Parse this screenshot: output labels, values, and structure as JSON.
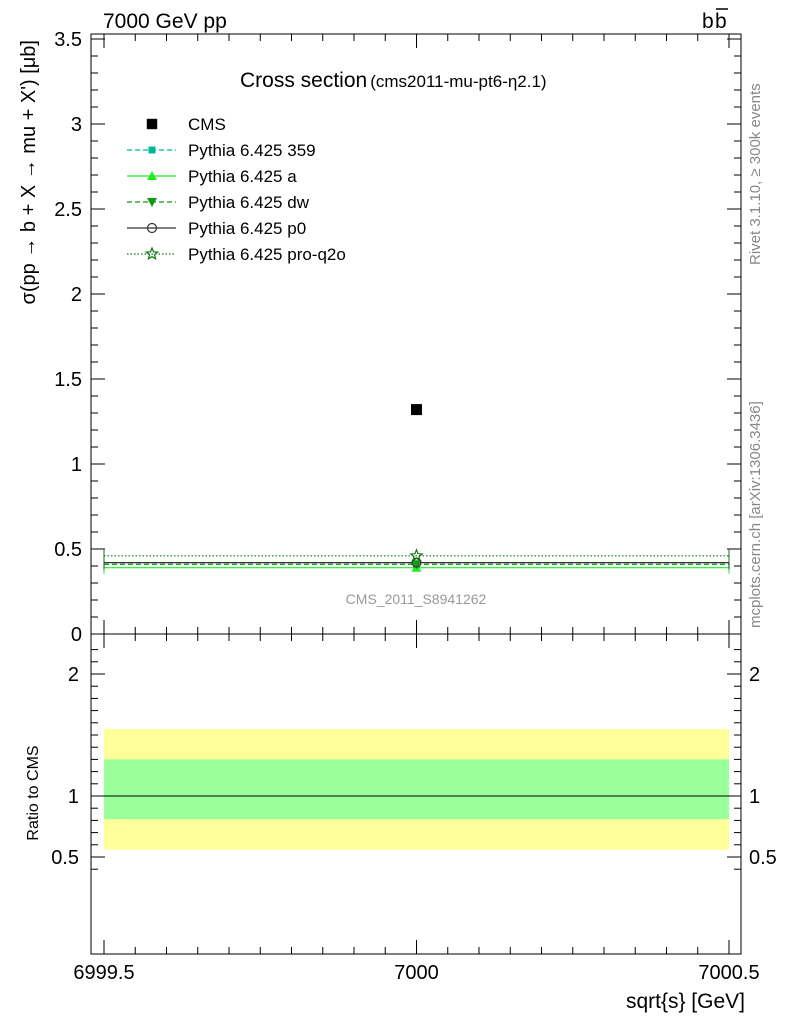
{
  "header": {
    "left": "7000 GeV pp",
    "right": "b",
    "right_bar": "b"
  },
  "side_labels": {
    "rivet": "Rivet 3.1.10, ≥ 300k events",
    "mcplots": "mcplots.cern.ch [arXiv:1306.3436]"
  },
  "chart_data": [
    {
      "type": "scatter",
      "title": "Cross section",
      "subtitle": "(cms2011-mu-pt6-η2.1)",
      "ylabel": "σ(pp → b + X → mu + X') [μb]",
      "xlim": [
        6999.5,
        7000.5
      ],
      "ylim": [
        0,
        3.5
      ],
      "yticks": [
        0,
        0.5,
        1,
        1.5,
        2,
        2.5,
        3,
        3.5
      ],
      "ytick_labels": [
        "0",
        "0.5",
        "1",
        "1.5",
        "2",
        "2.5",
        "3",
        "3.5"
      ],
      "watermark": "CMS_2011_S8941262",
      "legend_position": "top-left",
      "series": [
        {
          "name": "CMS",
          "x": [
            7000
          ],
          "y": [
            1.32
          ],
          "color": "#000000",
          "marker": "square",
          "line": "none"
        },
        {
          "name": "Pythia 6.425 359",
          "x": [
            7000
          ],
          "y": [
            0.41
          ],
          "color": "#00b894",
          "marker": "small-square",
          "line": "dashed"
        },
        {
          "name": "Pythia 6.425 a",
          "x": [
            7000
          ],
          "y": [
            0.39
          ],
          "color": "#22ee22",
          "marker": "triangle-up",
          "line": "solid"
        },
        {
          "name": "Pythia 6.425 dw",
          "x": [
            7000
          ],
          "y": [
            0.41
          ],
          "color": "#119911",
          "marker": "triangle-down",
          "line": "dashed"
        },
        {
          "name": "Pythia 6.425 p0",
          "x": [
            7000
          ],
          "y": [
            0.42
          ],
          "color": "#333333",
          "marker": "circle",
          "line": "solid"
        },
        {
          "name": "Pythia 6.425 pro-q2o",
          "x": [
            7000
          ],
          "y": [
            0.46
          ],
          "color": "#117711",
          "marker": "star",
          "line": "dotted"
        }
      ]
    },
    {
      "type": "area",
      "ylabel": "Ratio to CMS",
      "xlabel": "sqrt{s} [GeV]",
      "xlim": [
        6999.5,
        7000.5
      ],
      "ylim": [
        0.35,
        2.25
      ],
      "yticks": [
        0.5,
        1,
        2
      ],
      "ytick_labels": [
        "0.5",
        "1",
        "2"
      ],
      "xticks": [
        6999.5,
        7000,
        7000.5
      ],
      "xtick_labels": [
        "6999.5",
        "7000",
        "7000.5"
      ],
      "bands": [
        {
          "name": "outer",
          "low": 0.56,
          "high": 1.55,
          "color": "#ffff99"
        },
        {
          "name": "inner",
          "low": 0.81,
          "high": 1.3,
          "color": "#99ff99"
        }
      ],
      "reference": 1
    }
  ]
}
